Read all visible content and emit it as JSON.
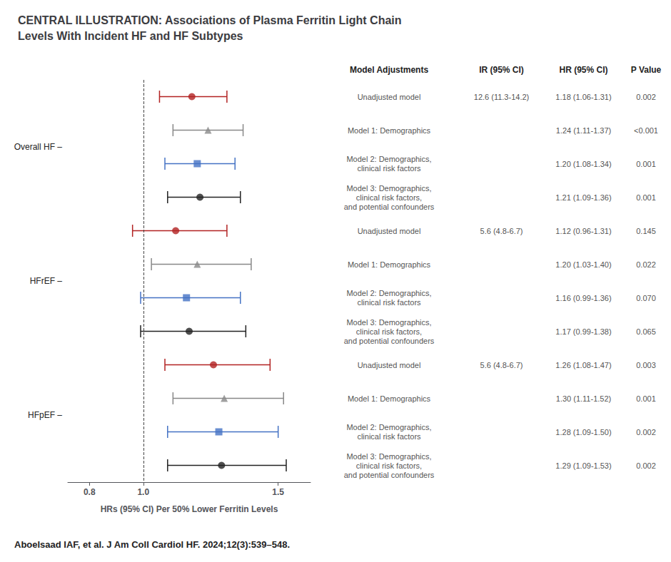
{
  "chart_data": {
    "type": "forest",
    "title": "CENTRAL ILLUSTRATION: Associations of Plasma Ferritin Light Chain\nLevels With Incident HF and HF Subtypes",
    "xlabel": "HRs (95% CI) Per 50% Lower Ferritin Levels",
    "xlim": [
      0.72,
      1.62
    ],
    "xticks": [
      0.8,
      {
        "value": 1.0,
        "label": "1.0"
      },
      1.5
    ],
    "reference_line": 1.0,
    "grid": false,
    "columns": [
      "Model Adjustments",
      "IR (95% CI)",
      "HR (95% CI)",
      "P Value"
    ],
    "groups": [
      {
        "label": "Overall HF –",
        "rows": [
          {
            "model": [
              "Unadjusted model"
            ],
            "hr": 1.18,
            "lo": 1.06,
            "hi": 1.31,
            "color": "#b22222",
            "marker": "circle",
            "ir": "12.6 (11.3-14.2)",
            "hr_text": "1.18 (1.06-1.31)",
            "p": "0.002"
          },
          {
            "model": [
              "Model 1: Demographics"
            ],
            "hr": 1.24,
            "lo": 1.11,
            "hi": 1.37,
            "color": "#888888",
            "marker": "triangle",
            "ir": null,
            "hr_text": "1.24 (1.11-1.37)",
            "p": "<0.001"
          },
          {
            "model": [
              "Model 2: Demographics,",
              "clinical risk factors"
            ],
            "hr": 1.2,
            "lo": 1.08,
            "hi": 1.34,
            "color": "#4472c4",
            "marker": "square",
            "ir": null,
            "hr_text": "1.20 (1.08-1.34)",
            "p": "0.001"
          },
          {
            "model": [
              "Model 3: Demographics,",
              "clinical risk factors,",
              "and potential confounders"
            ],
            "hr": 1.21,
            "lo": 1.09,
            "hi": 1.36,
            "color": "#222222",
            "marker": "circle",
            "ir": null,
            "hr_text": "1.21 (1.09-1.36)",
            "p": "0.001"
          }
        ]
      },
      {
        "label": "HFrEF –",
        "rows": [
          {
            "model": [
              "Unadjusted model"
            ],
            "hr": 1.12,
            "lo": 0.96,
            "hi": 1.31,
            "color": "#b22222",
            "marker": "circle",
            "ir": "5.6 (4.8-6.7)",
            "hr_text": "1.12 (0.96-1.31)",
            "p": "0.145"
          },
          {
            "model": [
              "Model 1: Demographics"
            ],
            "hr": 1.2,
            "lo": 1.03,
            "hi": 1.4,
            "color": "#888888",
            "marker": "triangle",
            "ir": null,
            "hr_text": "1.20 (1.03-1.40)",
            "p": "0.022"
          },
          {
            "model": [
              "Model 2: Demographics,",
              "clinical risk factors"
            ],
            "hr": 1.16,
            "lo": 0.99,
            "hi": 1.36,
            "color": "#4472c4",
            "marker": "square",
            "ir": null,
            "hr_text": "1.16 (0.99-1.36)",
            "p": "0.070"
          },
          {
            "model": [
              "Model 3: Demographics,",
              "clinical risk factors,",
              "and potential confounders"
            ],
            "hr": 1.17,
            "lo": 0.99,
            "hi": 1.38,
            "color": "#222222",
            "marker": "circle",
            "ir": null,
            "hr_text": "1.17 (0.99-1.38)",
            "p": "0.065"
          }
        ]
      },
      {
        "label": "HFpEF –",
        "rows": [
          {
            "model": [
              "Unadjusted model"
            ],
            "hr": 1.26,
            "lo": 1.08,
            "hi": 1.47,
            "color": "#b22222",
            "marker": "circle",
            "ir": "5.6 (4.8-6.7)",
            "hr_text": "1.26 (1.08-1.47)",
            "p": "0.003"
          },
          {
            "model": [
              "Model 1: Demographics"
            ],
            "hr": 1.3,
            "lo": 1.11,
            "hi": 1.52,
            "color": "#888888",
            "marker": "triangle",
            "ir": null,
            "hr_text": "1.30 (1.11-1.52)",
            "p": "0.001"
          },
          {
            "model": [
              "Model 2: Demographics,",
              "clinical risk factors"
            ],
            "hr": 1.28,
            "lo": 1.09,
            "hi": 1.5,
            "color": "#4472c4",
            "marker": "square",
            "ir": null,
            "hr_text": "1.28 (1.09-1.50)",
            "p": "0.002"
          },
          {
            "model": [
              "Model 3: Demographics,",
              "clinical risk factors,",
              "and potential confounders"
            ],
            "hr": 1.29,
            "lo": 1.09,
            "hi": 1.53,
            "color": "#222222",
            "marker": "circle",
            "ir": null,
            "hr_text": "1.29 (1.09-1.53)",
            "p": "0.002"
          }
        ]
      }
    ],
    "annotations": [
      "Aboelsaad IAF, et al. J Am Coll Cardiol HF. 2024;12(3):539–548."
    ]
  }
}
